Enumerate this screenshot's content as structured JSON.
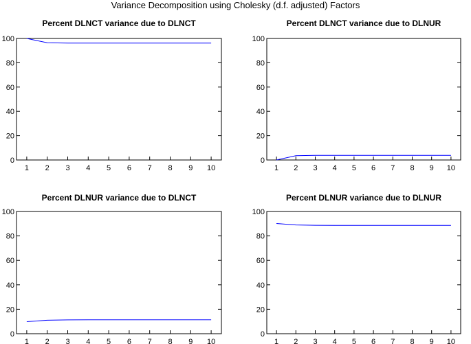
{
  "figure": {
    "title": "Variance Decomposition using Cholesky (d.f. adjusted) Factors"
  },
  "chart_data": [
    {
      "type": "line",
      "title": "Percent DLNCT variance due to DLNCT",
      "x": [
        1,
        2,
        3,
        4,
        5,
        6,
        7,
        8,
        9,
        10
      ],
      "series": [
        {
          "values": [
            100,
            96.5,
            96.2,
            96.2,
            96.2,
            96.2,
            96.2,
            96.2,
            96.2,
            96.2
          ],
          "color": "#0000ff"
        }
      ],
      "ylim": [
        0,
        100
      ],
      "yticks": [
        0,
        20,
        40,
        60,
        80,
        100
      ],
      "xlabel": "",
      "ylabel": "",
      "grid": false
    },
    {
      "type": "line",
      "title": "Percent DLNCT variance due to DLNUR",
      "x": [
        1,
        2,
        3,
        4,
        5,
        6,
        7,
        8,
        9,
        10
      ],
      "series": [
        {
          "values": [
            0,
            3.5,
            3.8,
            3.8,
            3.8,
            3.8,
            3.8,
            3.8,
            3.8,
            3.8
          ],
          "color": "#0000ff"
        }
      ],
      "ylim": [
        0,
        100
      ],
      "yticks": [
        0,
        20,
        40,
        60,
        80,
        100
      ],
      "xlabel": "",
      "ylabel": "",
      "grid": false
    },
    {
      "type": "line",
      "title": "Percent DLNUR variance due to DLNCT",
      "x": [
        1,
        2,
        3,
        4,
        5,
        6,
        7,
        8,
        9,
        10
      ],
      "series": [
        {
          "values": [
            9.8,
            11.0,
            11.3,
            11.4,
            11.4,
            11.4,
            11.4,
            11.4,
            11.4,
            11.4
          ],
          "color": "#0000ff"
        }
      ],
      "ylim": [
        0,
        100
      ],
      "yticks": [
        0,
        20,
        40,
        60,
        80,
        100
      ],
      "xlabel": "",
      "ylabel": "",
      "grid": false
    },
    {
      "type": "line",
      "title": "Percent DLNUR variance due to DLNUR",
      "x": [
        1,
        2,
        3,
        4,
        5,
        6,
        7,
        8,
        9,
        10
      ],
      "series": [
        {
          "values": [
            90.2,
            89.0,
            88.7,
            88.6,
            88.6,
            88.6,
            88.6,
            88.6,
            88.6,
            88.6
          ],
          "color": "#0000ff"
        }
      ],
      "ylim": [
        0,
        100
      ],
      "yticks": [
        0,
        20,
        40,
        60,
        80,
        100
      ],
      "xlabel": "",
      "ylabel": "",
      "grid": false
    }
  ]
}
